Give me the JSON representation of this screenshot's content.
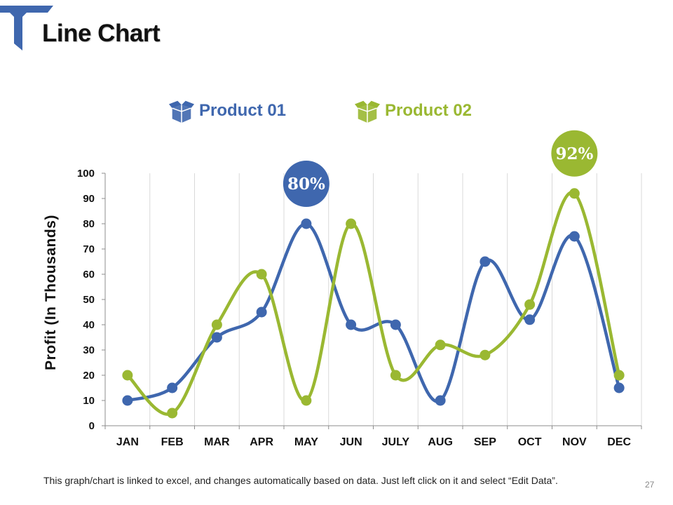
{
  "slide": {
    "title": "Line Chart",
    "footnote": "This graph/chart is linked to excel, and changes automatically based on data. Just left click on it and select “Edit Data”.",
    "page_number": "27",
    "accent_color": "#3F67AE"
  },
  "legend": [
    {
      "label": "Product 01",
      "color": "#3F67AE",
      "icon": "box-icon"
    },
    {
      "label": "Product 02",
      "color": "#9AB832",
      "icon": "box-icon"
    }
  ],
  "chart_data": {
    "type": "line",
    "title": "Line Chart",
    "xlabel": "",
    "ylabel": "Profit (In Thousands)",
    "categories": [
      "JAN",
      "FEB",
      "MAR",
      "APR",
      "MAY",
      "JUN",
      "JULY",
      "AUG",
      "SEP",
      "OCT",
      "NOV",
      "DEC"
    ],
    "series": [
      {
        "name": "Product 01",
        "color": "#3F67AE",
        "values": [
          10,
          15,
          35,
          45,
          80,
          40,
          40,
          10,
          65,
          42,
          75,
          15
        ]
      },
      {
        "name": "Product 02",
        "color": "#9AB832",
        "values": [
          20,
          5,
          40,
          60,
          10,
          80,
          20,
          32,
          28,
          48,
          92,
          20
        ]
      }
    ],
    "ylim": [
      0,
      100
    ],
    "yticks": [
      0,
      10,
      20,
      30,
      40,
      50,
      60,
      70,
      80,
      90,
      100
    ],
    "grid": "vertical",
    "legend_position": "top",
    "callouts": [
      {
        "series": 0,
        "category": "MAY",
        "label": "80%",
        "color": "#3F67AE"
      },
      {
        "series": 1,
        "category": "NOV",
        "label": "92%",
        "color": "#9AB832"
      }
    ]
  }
}
